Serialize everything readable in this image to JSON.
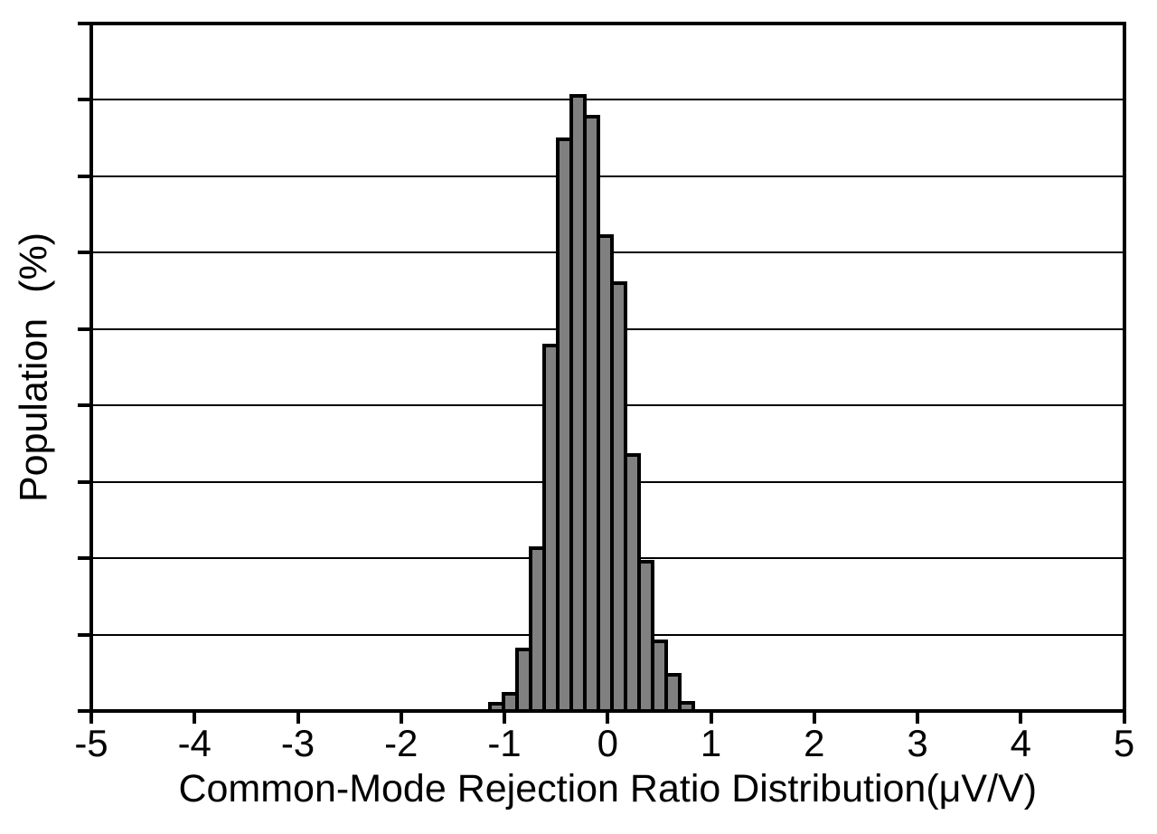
{
  "chart_data": {
    "type": "bar",
    "subtype": "histogram",
    "title": "",
    "xlabel": "Common-Mode Rejection Ratio Distribution(μV/V)",
    "ylabel": "Population (%)",
    "xlim": [
      -5,
      5
    ],
    "ylim": [
      0,
      18
    ],
    "x_tick_labels": [
      "-5",
      "-4",
      "-3",
      "-2",
      "-1",
      "0",
      "1",
      "2",
      "3",
      "4",
      "5"
    ],
    "x_tick_values": [
      -5,
      -4,
      -3,
      -2,
      -1,
      0,
      1,
      2,
      3,
      4,
      5
    ],
    "y_tick_values": [
      0,
      2,
      4,
      6,
      8,
      10,
      12,
      14,
      16,
      18
    ],
    "y_tick_labels_visible": false,
    "grid": "horizontal",
    "grid_step": 2,
    "legend": null,
    "bar_fill_color": "#808080",
    "bar_edge_color": "#000000",
    "bins_start": -1.137,
    "bin_width": 0.131,
    "bin_centers": [
      -1.07,
      -0.94,
      -0.81,
      -0.68,
      -0.55,
      -0.42,
      -0.28,
      -0.15,
      -0.02,
      0.11,
      0.24,
      0.37,
      0.5,
      0.63,
      0.77
    ],
    "values": [
      0.2,
      0.46,
      1.61,
      4.26,
      9.56,
      14.96,
      16.1,
      15.56,
      12.44,
      11.19,
      6.71,
      3.91,
      1.84,
      0.96,
      0.22
    ]
  }
}
